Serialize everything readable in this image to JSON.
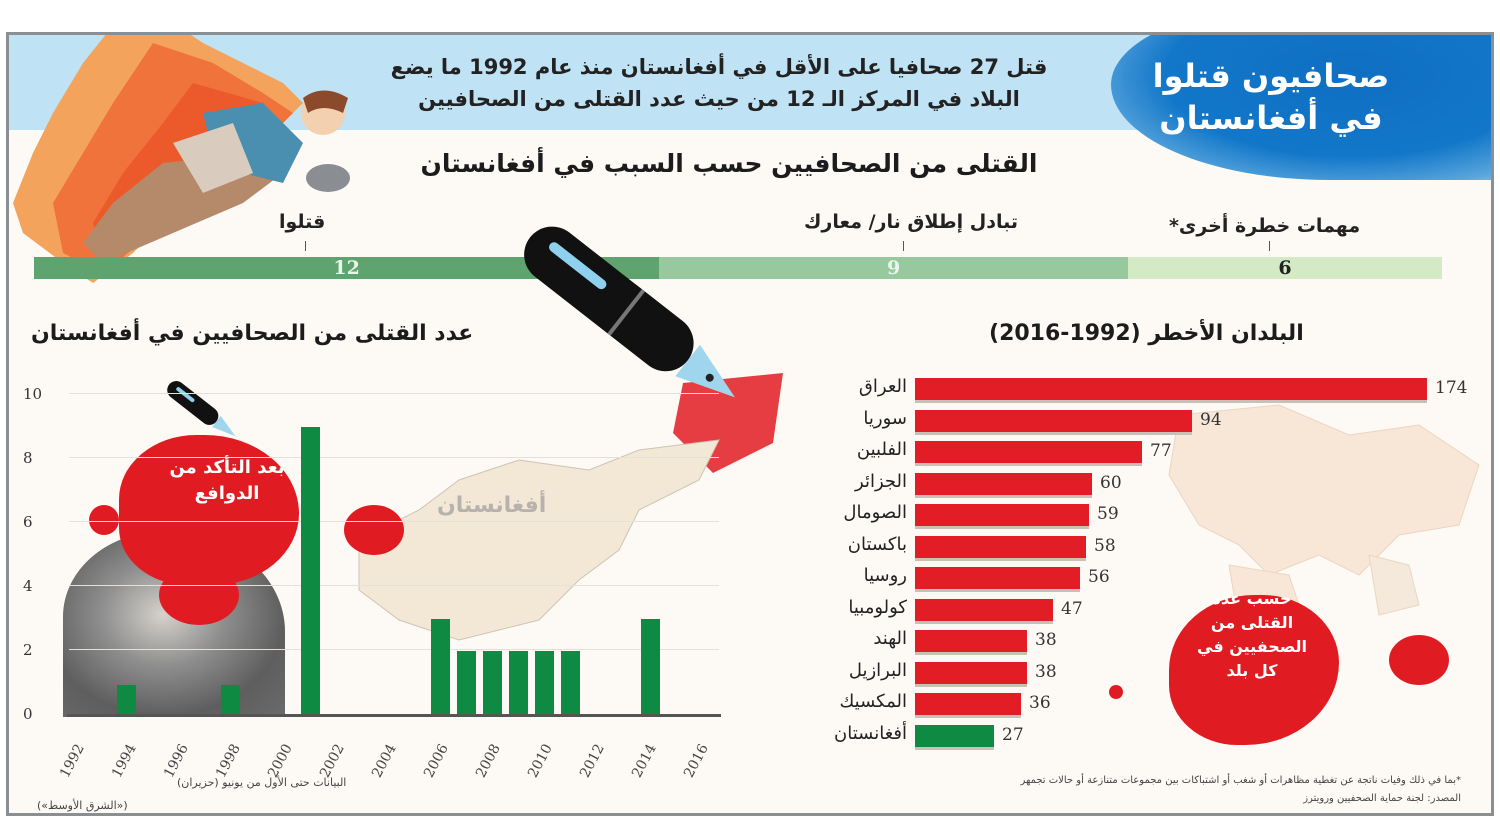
{
  "header": {
    "main_title": "صحافيون قتلوا في أفغانستان",
    "subtitle_line1": "قتل 27 صحافيا على الأقل في أفغانستان منذ عام 1992 ما يضع",
    "subtitle_line2": "البلاد في المركز الـ 12 من حيث عدد القتلى من الصحافيين"
  },
  "cause_section": {
    "title": "القتلى من الصحافيين حسب السبب في أفغانستان",
    "segments": [
      {
        "label": "قتلوا",
        "value": "12",
        "color": "#5fa36e"
      },
      {
        "label": "تبادل إطلاق نار/ معارك",
        "value": "9",
        "color": "#98c89e"
      },
      {
        "label": "مهمات خطرة أخرى*",
        "value": "6",
        "color": "#d3eac4"
      }
    ]
  },
  "afghanistan_chart": {
    "title": "عدد القتلى من الصحافيين في أفغانستان",
    "annotation": "بعد التأكد من الدوافع",
    "map_label": "أفغانستان",
    "data_note": "البيانات حتى الأول من يونيو (حزيران)",
    "bar_color": "#0f8a43"
  },
  "countries_chart": {
    "title": "البلدان الأخطر (1992-2016)",
    "annotation": "حسب عدد القتلى من الصحفيين في كل بلد",
    "bar_color": "#e21d25",
    "highlight_color": "#0f8a43"
  },
  "footer": {
    "footnote": "*بما في ذلك وفيات ناتجة عن تغطية مظاهرات أو شغب أو اشتباكات بين مجموعات متنازعة أو حالات تجمهر",
    "source": "المصدر: لجنة حماية الصحفيين ورويترز",
    "credit": "(«الشرق الأوسط»)"
  },
  "chart_data": [
    {
      "type": "bar",
      "title": "القتلى من الصحافيين حسب السبب في أفغانستان",
      "orientation": "stacked-horizontal",
      "categories": [
        "قتلوا",
        "تبادل إطلاق نار/ معارك",
        "مهمات خطرة أخرى*"
      ],
      "values": [
        12,
        9,
        6
      ]
    },
    {
      "type": "bar",
      "title": "عدد القتلى من الصحافيين في أفغانستان",
      "xlabel": "",
      "ylabel": "",
      "ylim": [
        0,
        10
      ],
      "yticks": [
        0,
        2,
        4,
        6,
        8,
        10
      ],
      "xticks": [
        "1992",
        "1994",
        "1996",
        "1998",
        "2000",
        "2002",
        "2004",
        "2006",
        "2008",
        "2010",
        "2012",
        "2014",
        "2016"
      ],
      "x": [
        1992,
        1993,
        1994,
        1995,
        1996,
        1997,
        1998,
        1999,
        2000,
        2001,
        2002,
        2003,
        2004,
        2005,
        2006,
        2007,
        2008,
        2009,
        2010,
        2011,
        2012,
        2013,
        2014,
        2015,
        2016
      ],
      "values": [
        0,
        0,
        1,
        0,
        0,
        0,
        1,
        0,
        0,
        9,
        0,
        0,
        0,
        0,
        3,
        2,
        2,
        2,
        2,
        2,
        0,
        0,
        3,
        0,
        0
      ],
      "grid": true,
      "note": "البيانات حتى الأول من يونيو (حزيران)"
    },
    {
      "type": "bar",
      "orientation": "horizontal",
      "title": "البلدان الأخطر (1992-2016)",
      "categories": [
        "العراق",
        "سوريا",
        "الفلبين",
        "الجزائر",
        "الصومال",
        "باكستان",
        "روسيا",
        "كولومبيا",
        "الهند",
        "البرازيل",
        "المكسيك",
        "أفغانستان"
      ],
      "values": [
        174,
        94,
        77,
        60,
        59,
        58,
        56,
        47,
        38,
        38,
        36,
        27
      ],
      "highlight": "أفغانستان"
    }
  ]
}
